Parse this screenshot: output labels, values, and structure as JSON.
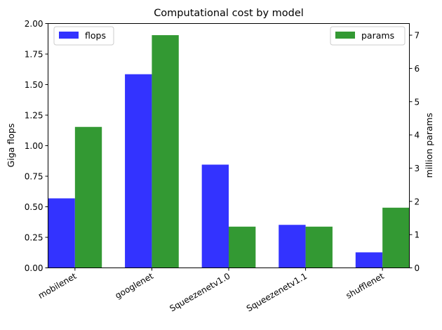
{
  "chart_data": {
    "type": "bar",
    "title": "Computational cost by model",
    "categories": [
      "mobilenet",
      "googlenet",
      "Squeezenetv1.0",
      "Squeezenetv1.1",
      "shufflenet"
    ],
    "series": [
      {
        "name": "flops",
        "axis": "left",
        "color": "#3333ff",
        "values": [
          0.569,
          1.585,
          0.845,
          0.352,
          0.127
        ]
      },
      {
        "name": "params",
        "axis": "right",
        "color": "#339933",
        "values": [
          4.24,
          7.0,
          1.24,
          1.24,
          1.81
        ]
      }
    ],
    "ylabel_left": "Giga flops",
    "ylabel_right": "million params",
    "ylim_left": [
      0,
      2.0
    ],
    "ylim_right": [
      0,
      7.35
    ],
    "yticks_left": [
      "0.00",
      "0.25",
      "0.50",
      "0.75",
      "1.00",
      "1.25",
      "1.50",
      "1.75",
      "2.00"
    ],
    "yticks_right": [
      "0",
      "1",
      "2",
      "3",
      "4",
      "5",
      "6",
      "7"
    ],
    "legend_left": {
      "label": "flops",
      "placement": "upper-left"
    },
    "legend_right": {
      "label": "params",
      "placement": "upper-right"
    }
  }
}
